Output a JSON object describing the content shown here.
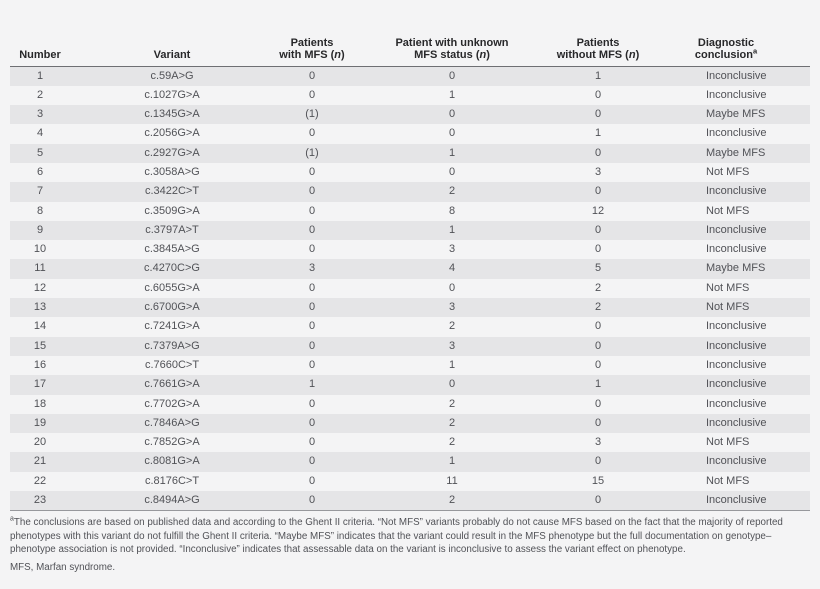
{
  "colors": {
    "page_background": "#f4f4f5",
    "row_stripe": "#e5e5e7",
    "header_rule": "#6e6f73",
    "bottom_rule": "#97989c",
    "header_text": "#28282a",
    "body_text": "#515257"
  },
  "table": {
    "headers": [
      {
        "key": "number",
        "html": "Number",
        "text": "Number"
      },
      {
        "key": "variant",
        "html": "Variant",
        "text": "Variant"
      },
      {
        "key": "patients_with_mfs",
        "html": "Patients<br>with MFS (<i>n</i>)",
        "text": "Patients with MFS (n)"
      },
      {
        "key": "patients_unknown_mfs",
        "html": "Patient with unknown<br>MFS status (<i>n</i>)",
        "text": "Patient with unknown MFS status (n)"
      },
      {
        "key": "patients_without_mfs",
        "html": "Patients<br>without MFS (<i>n</i>)",
        "text": "Patients without MFS (n)"
      },
      {
        "key": "diagnostic_conclusion",
        "html": "Diagnostic<br>conclusion<sup>a</sup>",
        "text": "Diagnostic conclusion(a)"
      }
    ],
    "rows": [
      [
        "1",
        "c.59A>G",
        "0",
        "0",
        "1",
        "Inconclusive"
      ],
      [
        "2",
        "c.1027G>A",
        "0",
        "1",
        "0",
        "Inconclusive"
      ],
      [
        "3",
        "c.1345G>A",
        "(1)",
        "0",
        "0",
        "Maybe MFS"
      ],
      [
        "4",
        "c.2056G>A",
        "0",
        "0",
        "1",
        "Inconclusive"
      ],
      [
        "5",
        "c.2927G>A",
        "(1)",
        "1",
        "0",
        "Maybe MFS"
      ],
      [
        "6",
        "c.3058A>G",
        "0",
        "0",
        "3",
        "Not MFS"
      ],
      [
        "7",
        "c.3422C>T",
        "0",
        "2",
        "0",
        "Inconclusive"
      ],
      [
        "8",
        "c.3509G>A",
        "0",
        "8",
        "12",
        "Not MFS"
      ],
      [
        "9",
        "c.3797A>T",
        "0",
        "1",
        "0",
        "Inconclusive"
      ],
      [
        "10",
        "c.3845A>G",
        "0",
        "3",
        "0",
        "Inconclusive"
      ],
      [
        "11",
        "c.4270C>G",
        "3",
        "4",
        "5",
        "Maybe MFS"
      ],
      [
        "12",
        "c.6055G>A",
        "0",
        "0",
        "2",
        "Not MFS"
      ],
      [
        "13",
        "c.6700G>A",
        "0",
        "3",
        "2",
        "Not MFS"
      ],
      [
        "14",
        "c.7241G>A",
        "0",
        "2",
        "0",
        "Inconclusive"
      ],
      [
        "15",
        "c.7379A>G",
        "0",
        "3",
        "0",
        "Inconclusive"
      ],
      [
        "16",
        "c.7660C>T",
        "0",
        "1",
        "0",
        "Inconclusive"
      ],
      [
        "17",
        "c.7661G>A",
        "1",
        "0",
        "1",
        "Inconclusive"
      ],
      [
        "18",
        "c.7702G>A",
        "0",
        "2",
        "0",
        "Inconclusive"
      ],
      [
        "19",
        "c.7846A>G",
        "0",
        "2",
        "0",
        "Inconclusive"
      ],
      [
        "20",
        "c.7852G>A",
        "0",
        "2",
        "3",
        "Not MFS"
      ],
      [
        "21",
        "c.8081G>A",
        "0",
        "1",
        "0",
        "Inconclusive"
      ],
      [
        "22",
        "c.8176C>T",
        "0",
        "11",
        "15",
        "Not MFS"
      ],
      [
        "23",
        "c.8494A>G",
        "0",
        "2",
        "0",
        "Inconclusive"
      ]
    ]
  },
  "footnotes": {
    "conclusion_note_html": "<sup>a</sup>The conclusions are based on published data and according to the Ghent II criteria. “Not MFS” variants probably do not cause MFS based on the fact that the majority of reported phenotypes with this variant do not fulfill the Ghent II criteria. “Maybe MFS” indicates that the variant could result in the MFS phenotype but the full documentation on genotype–phenotype association is not provided. “Inconclusive” indicates that assessable data on the variant is inconclusive to assess the variant effect on phenotype.",
    "abbreviation_note": "MFS, Marfan syndrome."
  }
}
